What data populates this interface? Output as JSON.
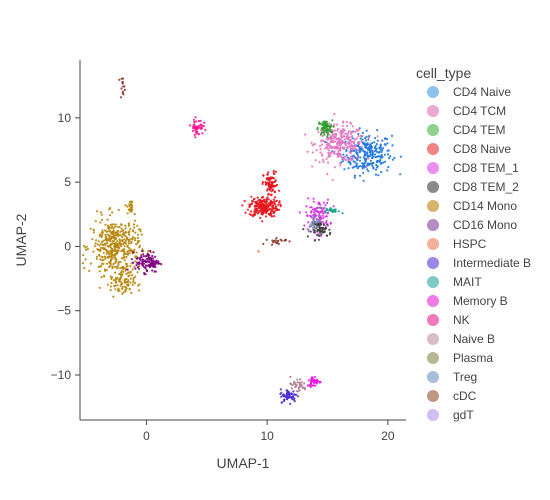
{
  "chart_data": {
    "type": "scatter",
    "xlabel": "UMAP-1",
    "ylabel": "UMAP-2",
    "xlim": [
      -5.5,
      21.5
    ],
    "ylim": [
      -13.5,
      14.5
    ],
    "x_ticks": [
      0,
      10,
      20
    ],
    "y_ticks": [
      -10,
      -5,
      0,
      5,
      10
    ],
    "x_tick_labels": [
      "0",
      "10",
      "20"
    ],
    "y_tick_labels": [
      "−10",
      "−5",
      "0",
      "5",
      "10"
    ],
    "grid": false,
    "legend": {
      "title": "cell_type",
      "placement": "right",
      "entries": [
        "CD4 Naive",
        "CD4 TCM",
        "CD4 TEM",
        "CD8 Naive",
        "CD8 TEM_1",
        "CD8 TEM_2",
        "CD14 Mono",
        "CD16 Mono",
        "HSPC",
        "Intermediate B",
        "MAIT",
        "Memory B",
        "NK",
        "Naive B",
        "Plasma",
        "Treg",
        "cDC",
        "gdT"
      ]
    },
    "series": [
      {
        "name": "CD4 Naive",
        "color": "#1f77e0",
        "clusters": [
          {
            "cx": 18.3,
            "cy": 7.2,
            "sx": 1.0,
            "sy": 0.8,
            "n": 260
          }
        ]
      },
      {
        "name": "CD4 TCM",
        "color": "#e377c2",
        "clusters": [
          {
            "cx": 16.0,
            "cy": 8.0,
            "sx": 1.0,
            "sy": 0.7,
            "n": 280
          }
        ]
      },
      {
        "name": "CD4 TEM",
        "color": "#2ca02c",
        "clusters": [
          {
            "cx": 14.8,
            "cy": 9.2,
            "sx": 0.3,
            "sy": 0.3,
            "n": 70
          }
        ]
      },
      {
        "name": "CD8 Naive",
        "color": "#e8141c",
        "clusters": [
          {
            "cx": 9.7,
            "cy": 3.1,
            "sx": 0.6,
            "sy": 0.4,
            "n": 220
          },
          {
            "cx": 10.3,
            "cy": 4.8,
            "sx": 0.3,
            "sy": 0.5,
            "n": 80
          }
        ]
      },
      {
        "name": "CD8 TEM_1",
        "color": "#d62fe8",
        "clusters": [
          {
            "cx": 14.2,
            "cy": 2.4,
            "sx": 0.5,
            "sy": 0.6,
            "n": 110
          }
        ]
      },
      {
        "name": "CD8 TEM_2",
        "color": "#404040",
        "clusters": [
          {
            "cx": 14.5,
            "cy": 1.3,
            "sx": 0.4,
            "sy": 0.3,
            "n": 60
          }
        ]
      },
      {
        "name": "CD14 Mono",
        "color": "#b8860b",
        "clusters": [
          {
            "cx": -2.6,
            "cy": 0.0,
            "sx": 1.0,
            "sy": 1.1,
            "n": 420
          },
          {
            "cx": -2.0,
            "cy": -2.8,
            "sx": 0.5,
            "sy": 0.6,
            "n": 90
          },
          {
            "cx": -1.3,
            "cy": 3.0,
            "sx": 0.15,
            "sy": 0.3,
            "n": 20
          }
        ]
      },
      {
        "name": "CD16 Mono",
        "color": "#800080",
        "clusters": [
          {
            "cx": 0.1,
            "cy": -1.2,
            "sx": 0.5,
            "sy": 0.4,
            "n": 110
          }
        ]
      },
      {
        "name": "HSPC",
        "color": "#e9967a",
        "clusters": [
          {
            "cx": 9.3,
            "cy": -0.4,
            "sx": 0.05,
            "sy": 0.05,
            "n": 2
          }
        ]
      },
      {
        "name": "Intermediate B",
        "color": "#4b2bd9",
        "clusters": [
          {
            "cx": 11.8,
            "cy": -11.6,
            "sx": 0.35,
            "sy": 0.25,
            "n": 60
          }
        ]
      },
      {
        "name": "MAIT",
        "color": "#17a589",
        "clusters": [
          {
            "cx": 15.4,
            "cy": 2.8,
            "sx": 0.3,
            "sy": 0.1,
            "n": 25
          }
        ]
      },
      {
        "name": "Memory B",
        "color": "#e815e0",
        "clusters": [
          {
            "cx": 13.9,
            "cy": -10.5,
            "sx": 0.3,
            "sy": 0.2,
            "n": 40
          }
        ]
      },
      {
        "name": "NK",
        "color": "#ff1493",
        "clusters": [
          {
            "cx": 4.2,
            "cy": 9.3,
            "sx": 0.25,
            "sy": 0.3,
            "n": 50
          }
        ]
      },
      {
        "name": "Naive B",
        "color": "#b08090",
        "clusters": [
          {
            "cx": 12.5,
            "cy": -10.8,
            "sx": 0.4,
            "sy": 0.3,
            "n": 35
          }
        ]
      },
      {
        "name": "Plasma",
        "color": "#808000",
        "clusters": []
      },
      {
        "name": "Treg",
        "color": "#7b8fb5",
        "clusters": [
          {
            "cx": 13.9,
            "cy": 1.9,
            "sx": 0.3,
            "sy": 0.3,
            "n": 25
          }
        ]
      },
      {
        "name": "cDC",
        "color": "#8b3a2a",
        "clusters": [
          {
            "cx": 10.8,
            "cy": 0.4,
            "sx": 0.4,
            "sy": 0.15,
            "n": 20
          },
          {
            "cx": -2.0,
            "cy": 12.5,
            "sx": 0.1,
            "sy": 0.3,
            "n": 14
          }
        ]
      },
      {
        "name": "gdT",
        "color": "#a582e8",
        "clusters": []
      }
    ]
  },
  "colors": {
    "legend_swatches": [
      "#8ec2ea",
      "#eba8d2",
      "#8fd08c",
      "#f08484",
      "#e88ff0",
      "#8a8a8a",
      "#d8b36a",
      "#b58cc4",
      "#f3b09a",
      "#9c86e8",
      "#7fcac8",
      "#f27ae6",
      "#f27ab6",
      "#dbbcc6",
      "#b5b795",
      "#aabcdb",
      "#c09684",
      "#d2bdf3"
    ]
  }
}
